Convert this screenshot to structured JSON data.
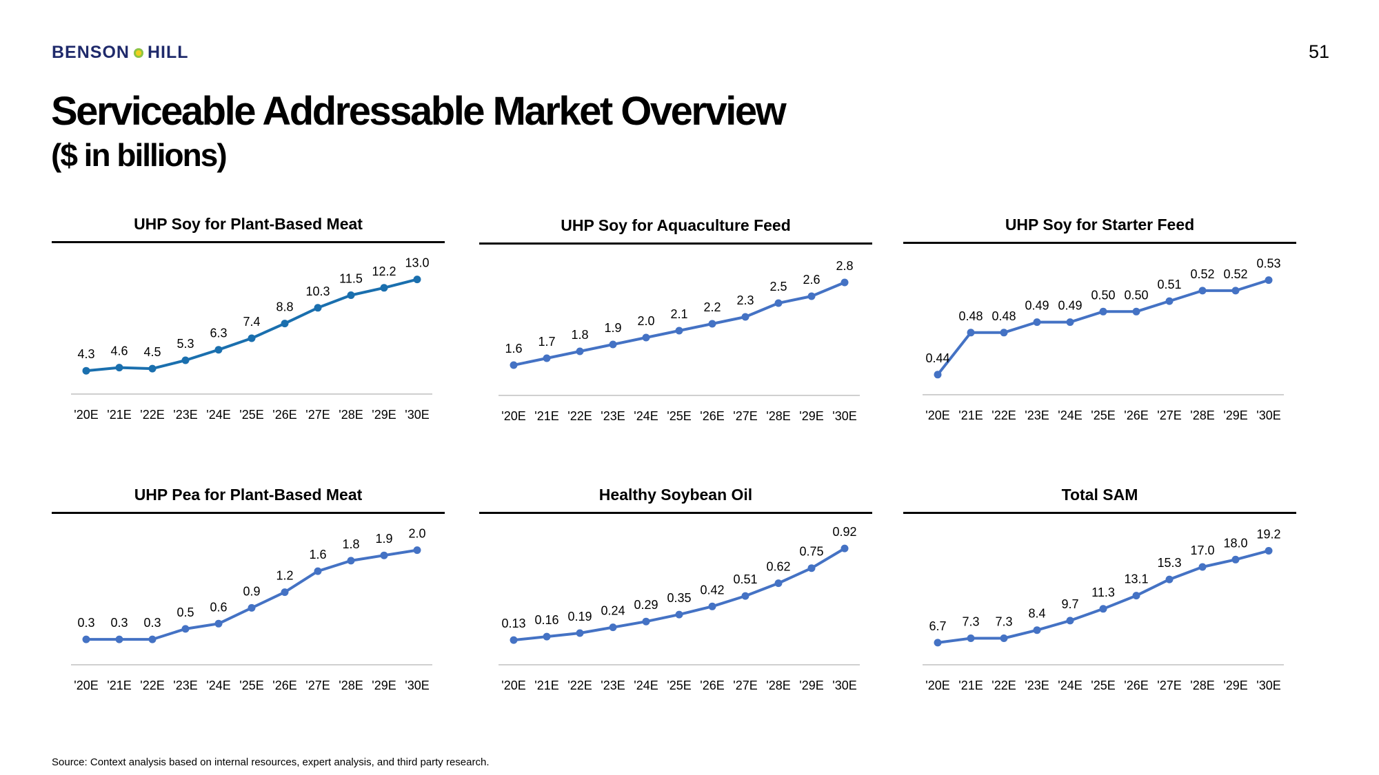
{
  "header": {
    "logo_left": "BENSON",
    "logo_right": "HILL",
    "page_number": "51",
    "title": "Serviceable Addressable Market Overview",
    "subtitle": "($ in billions)"
  },
  "footer": {
    "source": "Source: Context analysis based on internal resources, expert analysis, and third party research."
  },
  "colors": {
    "logo_navy": "#1f2a6b",
    "series_teal": "#1a6fae",
    "series_blue": "#4472c4",
    "axis_gray": "#bfbfbf"
  },
  "chart_data": [
    {
      "type": "line",
      "title": "UHP Soy for Plant-Based Meat",
      "color": "#1a6fae",
      "categories": [
        "'20E",
        "'21E",
        "'22E",
        "'23E",
        "'24E",
        "'25E",
        "'26E",
        "'27E",
        "'28E",
        "'29E",
        "'30E"
      ],
      "values": [
        4.3,
        4.6,
        4.5,
        5.3,
        6.3,
        7.4,
        8.8,
        10.3,
        11.5,
        12.2,
        13.0
      ],
      "labels": [
        "4.3",
        "4.6",
        "4.5",
        "5.3",
        "6.3",
        "7.4",
        "8.8",
        "10.3",
        "11.5",
        "12.2",
        "13.0"
      ],
      "ylim": [
        3.0,
        13.5
      ]
    },
    {
      "type": "line",
      "title": "UHP Soy for Aquaculture Feed",
      "color": "#4472c4",
      "categories": [
        "'20E",
        "'21E",
        "'22E",
        "'23E",
        "'24E",
        "'25E",
        "'26E",
        "'27E",
        "'28E",
        "'29E",
        "'30E"
      ],
      "values": [
        1.6,
        1.7,
        1.8,
        1.9,
        2.0,
        2.1,
        2.2,
        2.3,
        2.5,
        2.6,
        2.8
      ],
      "labels": [
        "1.6",
        "1.7",
        "1.8",
        "1.9",
        "2.0",
        "2.1",
        "2.2",
        "2.3",
        "2.5",
        "2.6",
        "2.8"
      ],
      "ylim": [
        1.3,
        2.9
      ]
    },
    {
      "type": "line",
      "title": "UHP Soy for Starter Feed",
      "color": "#4472c4",
      "categories": [
        "'20E",
        "'21E",
        "'22E",
        "'23E",
        "'24E",
        "'25E",
        "'26E",
        "'27E",
        "'28E",
        "'29E",
        "'30E"
      ],
      "values": [
        0.44,
        0.48,
        0.48,
        0.49,
        0.49,
        0.5,
        0.5,
        0.51,
        0.52,
        0.52,
        0.53
      ],
      "labels": [
        "0.44",
        "0.48",
        "0.48",
        "0.49",
        "0.49",
        "0.50",
        "0.50",
        "0.51",
        "0.52",
        "0.52",
        "0.53"
      ],
      "ylim": [
        0.43,
        0.535
      ]
    },
    {
      "type": "line",
      "title": "UHP Pea for Plant-Based Meat",
      "color": "#4472c4",
      "categories": [
        "'20E",
        "'21E",
        "'22E",
        "'23E",
        "'24E",
        "'25E",
        "'26E",
        "'27E",
        "'28E",
        "'29E",
        "'30E"
      ],
      "values": [
        0.3,
        0.3,
        0.3,
        0.5,
        0.6,
        0.9,
        1.2,
        1.6,
        1.8,
        1.9,
        2.0
      ],
      "labels": [
        "0.3",
        "0.3",
        "0.3",
        "0.5",
        "0.6",
        "0.9",
        "1.2",
        "1.6",
        "1.8",
        "1.9",
        "2.0"
      ],
      "ylim": [
        0.0,
        2.1
      ]
    },
    {
      "type": "line",
      "title": "Healthy Soybean Oil",
      "color": "#4472c4",
      "categories": [
        "'20E",
        "'21E",
        "'22E",
        "'23E",
        "'24E",
        "'25E",
        "'26E",
        "'27E",
        "'28E",
        "'29E",
        "'30E"
      ],
      "values": [
        0.13,
        0.16,
        0.19,
        0.24,
        0.29,
        0.35,
        0.42,
        0.51,
        0.62,
        0.75,
        0.92
      ],
      "labels": [
        "0.13",
        "0.16",
        "0.19",
        "0.24",
        "0.29",
        "0.35",
        "0.42",
        "0.51",
        "0.62",
        "0.75",
        "0.92"
      ],
      "ylim": [
        0.0,
        0.95
      ]
    },
    {
      "type": "line",
      "title": "Total SAM",
      "color": "#4472c4",
      "categories": [
        "'20E",
        "'21E",
        "'22E",
        "'23E",
        "'24E",
        "'25E",
        "'26E",
        "'27E",
        "'28E",
        "'29E",
        "'30E"
      ],
      "values": [
        6.7,
        7.3,
        7.3,
        8.4,
        9.7,
        11.3,
        13.1,
        15.3,
        17.0,
        18.0,
        19.2
      ],
      "labels": [
        "6.7",
        "7.3",
        "7.3",
        "8.4",
        "9.7",
        "11.3",
        "13.1",
        "15.3",
        "17.0",
        "18.0",
        "19.2"
      ],
      "ylim": [
        5.0,
        20.0
      ]
    }
  ]
}
